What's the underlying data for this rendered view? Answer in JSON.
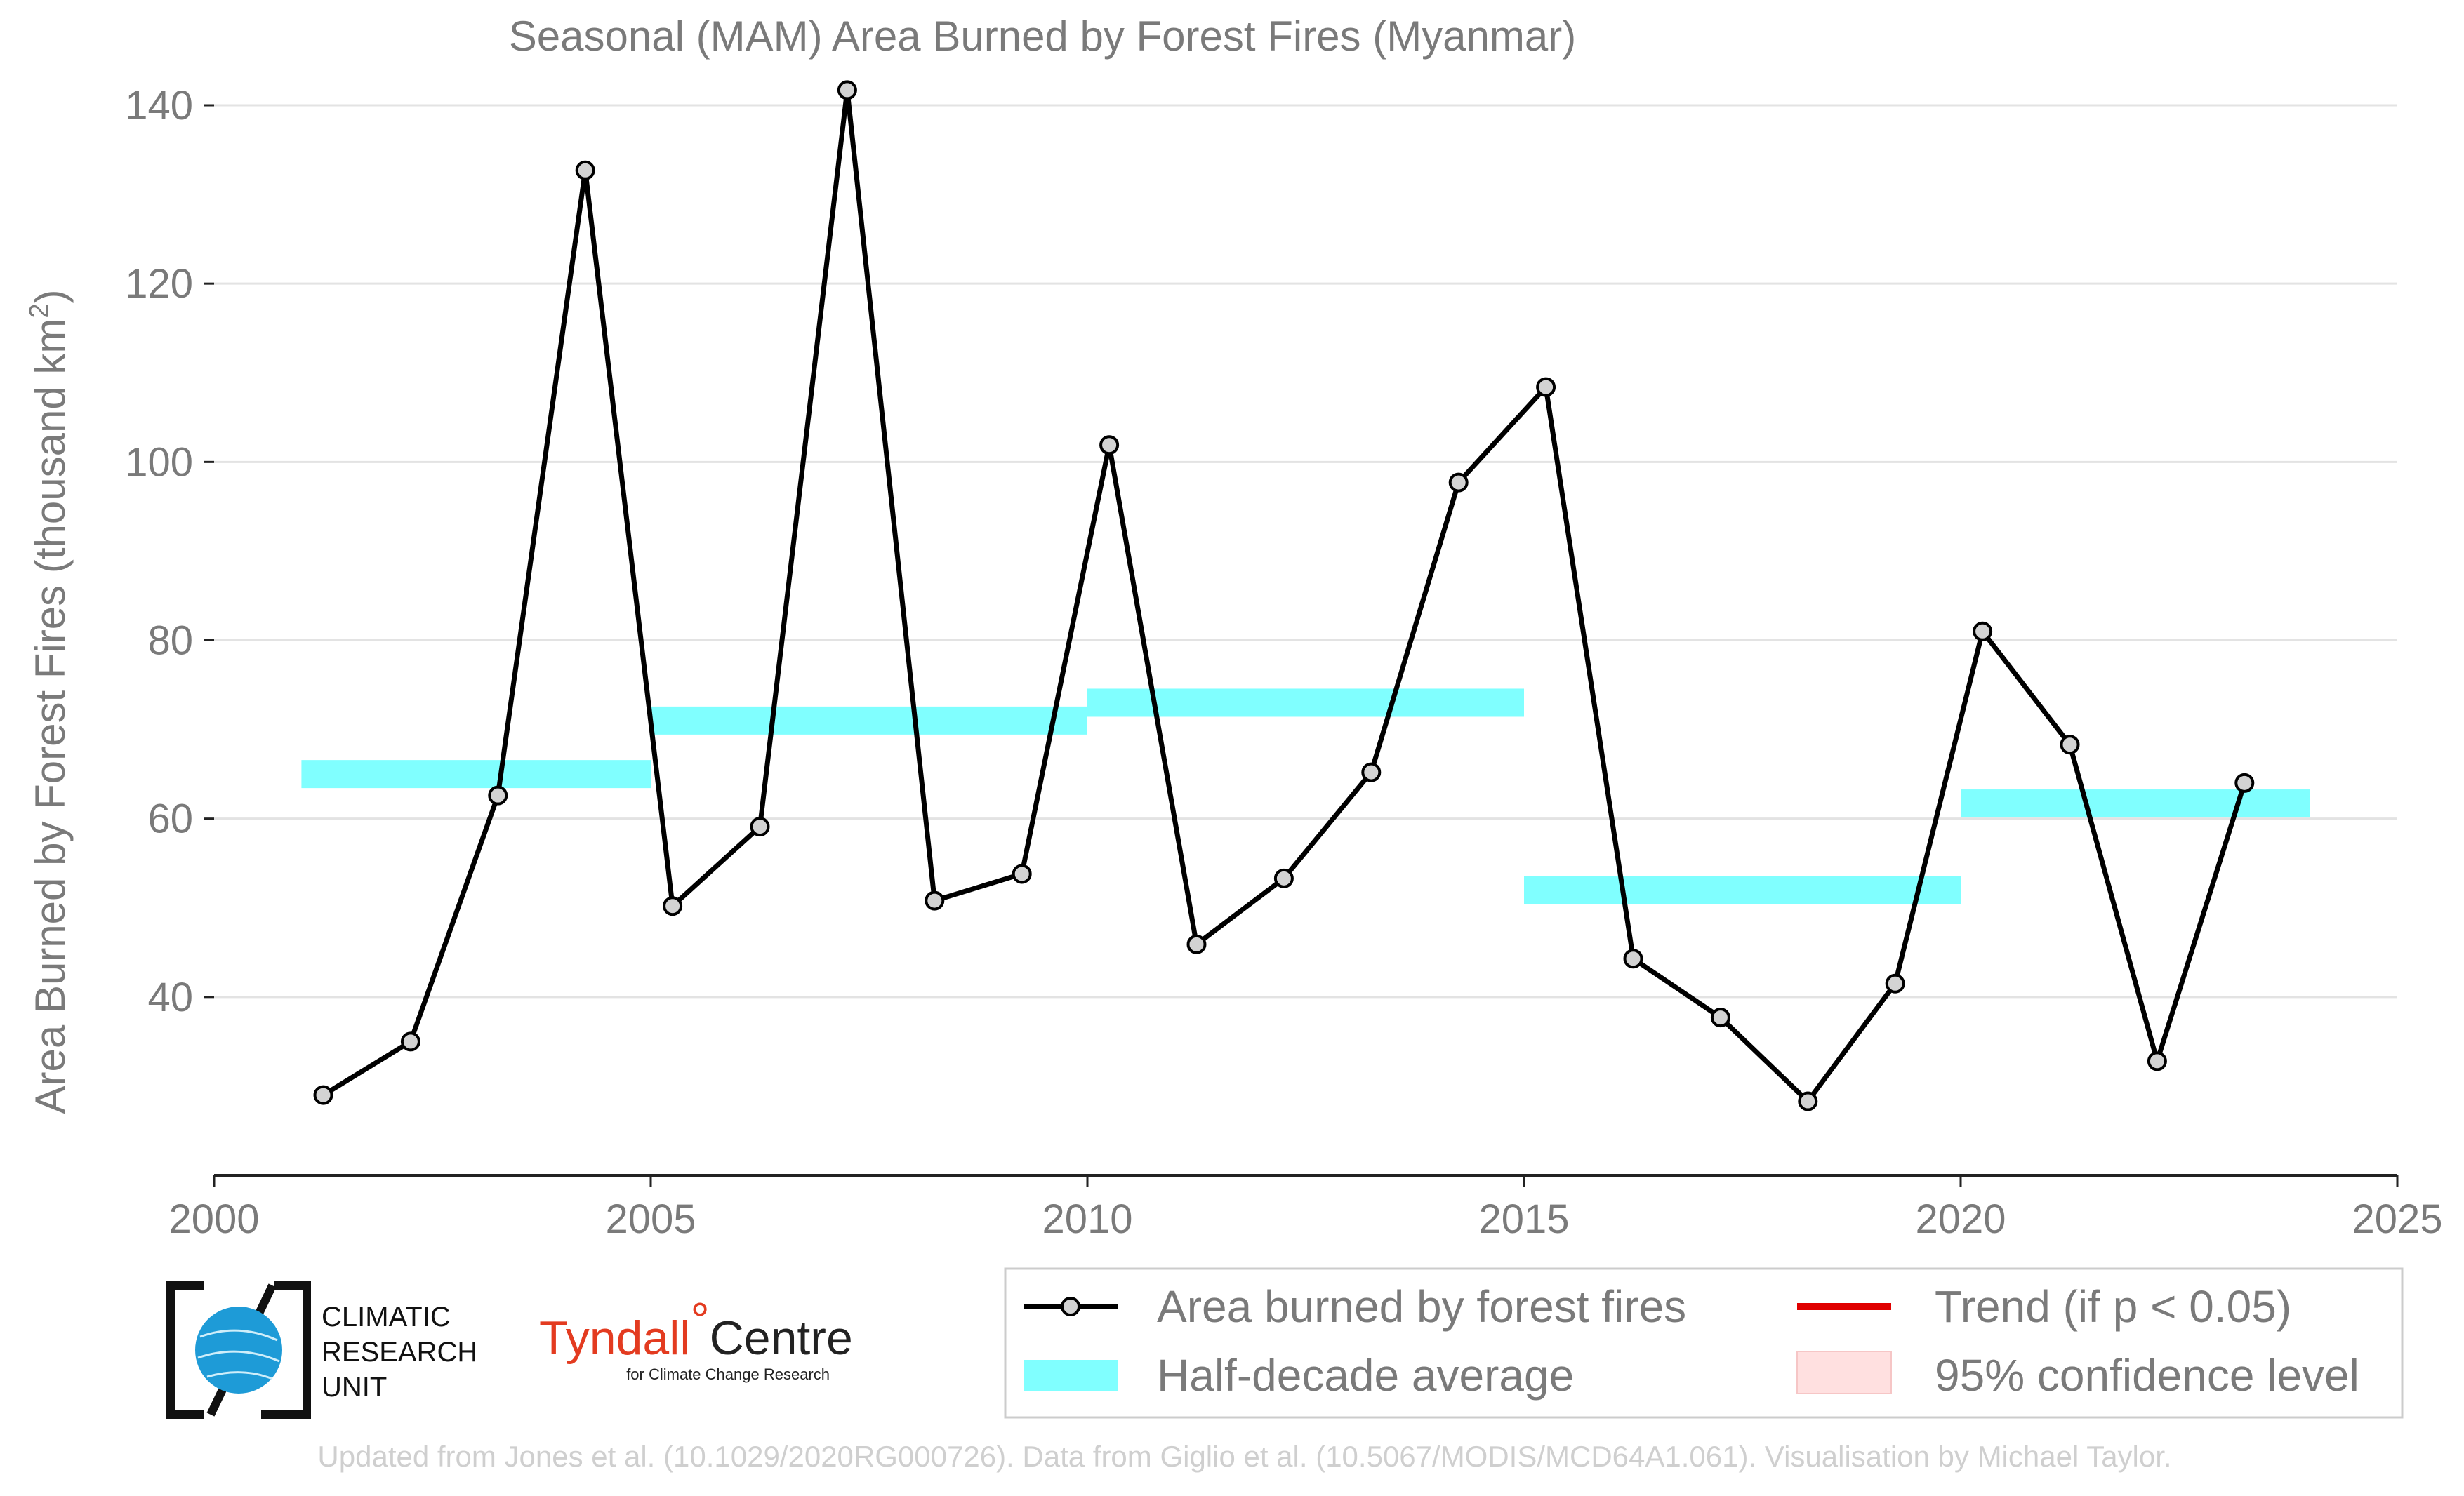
{
  "chart_data": {
    "type": "line",
    "title": "Seasonal (MAM) Area Burned by Forest Fires (Myanmar)",
    "xlabel": "",
    "ylabel": "Area Burned by Forest Fires (thousand km",
    "ylabel_sup": "2",
    "ylabel_end": ")",
    "xlim": [
      2000,
      2025
    ],
    "ylim": [
      20,
      140
    ],
    "x_ticks": [
      2000,
      2005,
      2010,
      2015,
      2020,
      2025
    ],
    "x_tick_labels": [
      "2000",
      "2005",
      "2010",
      "2015",
      "2020",
      "2025"
    ],
    "y_ticks": [
      40,
      60,
      80,
      100,
      120,
      140
    ],
    "y_tick_labels": [
      "40",
      "60",
      "80",
      "100",
      "120",
      "140"
    ],
    "grid": "horizontal",
    "series": [
      {
        "name": "Area burned by forest fires",
        "color": "#000000",
        "marker_fill": "#d3d3d3",
        "x": [
          2001,
          2002,
          2003,
          2004,
          2005,
          2006,
          2007,
          2008,
          2009,
          2010,
          2011,
          2012,
          2013,
          2014,
          2015,
          2016,
          2017,
          2018,
          2019,
          2020,
          2021,
          2022,
          2023
        ],
        "values": [
          29.0,
          35.0,
          62.6,
          132.7,
          50.2,
          59.1,
          141.7,
          50.8,
          53.8,
          101.9,
          45.9,
          53.3,
          65.2,
          97.7,
          108.4,
          44.3,
          37.7,
          28.3,
          41.5,
          81.0,
          68.3,
          32.8,
          64.0
        ]
      }
    ],
    "half_decade_average": {
      "name": "Half-decade average",
      "color": "#80ffff",
      "segments": [
        {
          "x_start": 2001,
          "x_end": 2005,
          "value": 65.0
        },
        {
          "x_start": 2005,
          "x_end": 2010,
          "value": 71.0
        },
        {
          "x_start": 2010,
          "x_end": 2015,
          "value": 73.0
        },
        {
          "x_start": 2015,
          "x_end": 2020,
          "value": 52.0
        },
        {
          "x_start": 2020,
          "x_end": 2024,
          "value": 61.7
        }
      ]
    },
    "legend": {
      "placement": "bottom-right",
      "entries": [
        {
          "label": "Area burned by forest fires",
          "style": "line-marker",
          "color": "#000000"
        },
        {
          "label": "Trend (if p < 0.05)",
          "style": "line",
          "color": "#e00000"
        },
        {
          "label": "Half-decade average",
          "style": "band",
          "color": "#80ffff"
        },
        {
          "label": "95% confidence level",
          "style": "patch",
          "color": "#ffd6d6"
        }
      ]
    }
  },
  "logos": {
    "cru": {
      "line1": "CLIMATIC",
      "line2": "RESEARCH",
      "line3": "UNIT"
    },
    "tyndall": {
      "name": "Tyndall",
      "degree": "°",
      "centre": "Centre",
      "sub": "for Climate Change Research"
    }
  },
  "footer": "Updated from Jones et al. (10.1029/2020RG000726). Data from Giglio et al. (10.5067/MODIS/MCD64A1.061). Visualisation by Michael Taylor."
}
